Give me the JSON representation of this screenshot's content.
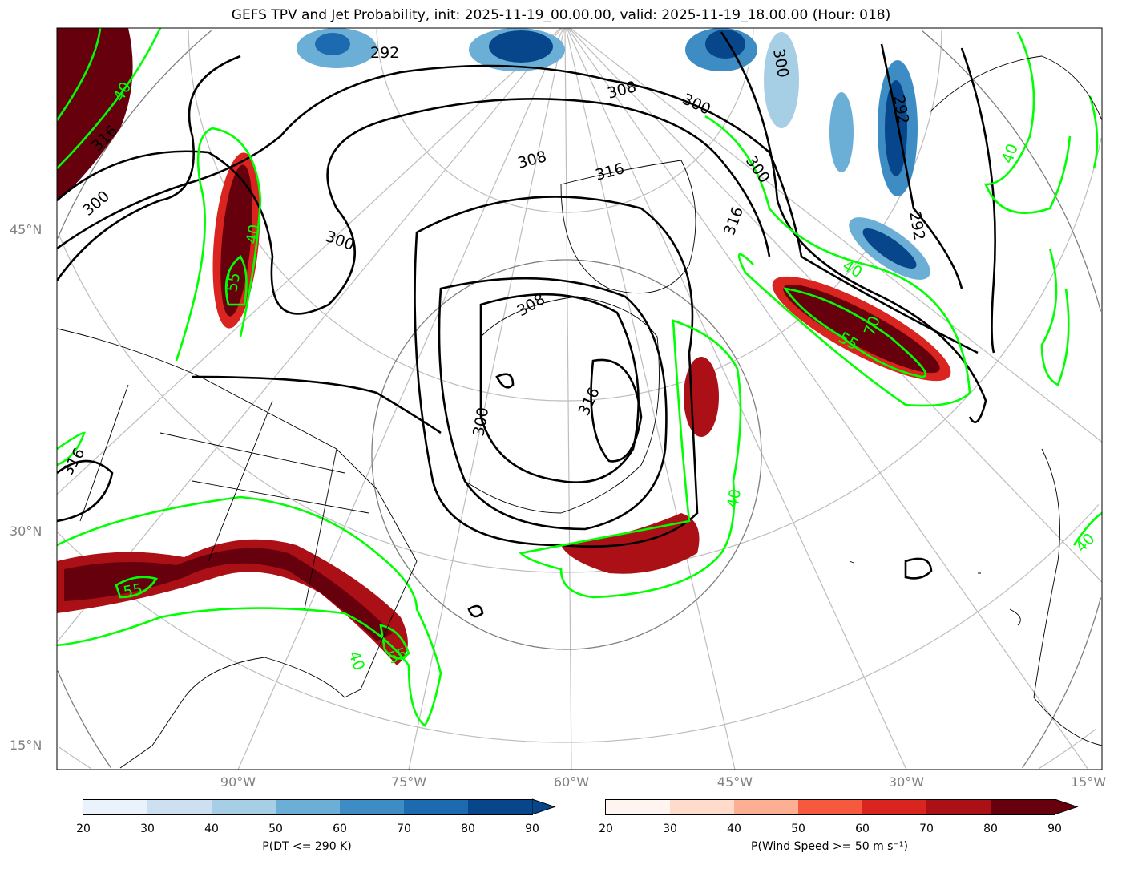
{
  "title": "GEFS TPV and Jet Probability, init: 2025-11-19_00.00.00, valid: 2025-11-19_18.00.00 (Hour: 018)",
  "lat_labels": [
    "45°N",
    "30°N",
    "15°N"
  ],
  "lon_labels": [
    "90°W",
    "75°W",
    "60°W",
    "45°W",
    "30°W",
    "15°W"
  ],
  "contour_labels": {
    "theta": [
      "292",
      "300",
      "308",
      "316"
    ],
    "wind": [
      "40",
      "55",
      "70"
    ]
  },
  "colorbars": [
    {
      "label": "P(DT <= 290 K)",
      "ticks": [
        "20",
        "30",
        "40",
        "50",
        "60",
        "70",
        "80",
        "90"
      ],
      "colors": [
        "#eaf2fb",
        "#cde0f1",
        "#a6cee4",
        "#6baed6",
        "#3d8dc4",
        "#1c6aaf",
        "#08468b"
      ],
      "extend": "max"
    },
    {
      "label": "P(Wind Speed >= 50 m s⁻¹)",
      "ticks": [
        "20",
        "30",
        "40",
        "50",
        "60",
        "70",
        "80",
        "90"
      ],
      "colors": [
        "#fff5f0",
        "#fedbcb",
        "#fcaf93",
        "#f7593f",
        "#d9241f",
        "#aa1016",
        "#67000d"
      ],
      "extend": "max"
    }
  ]
}
